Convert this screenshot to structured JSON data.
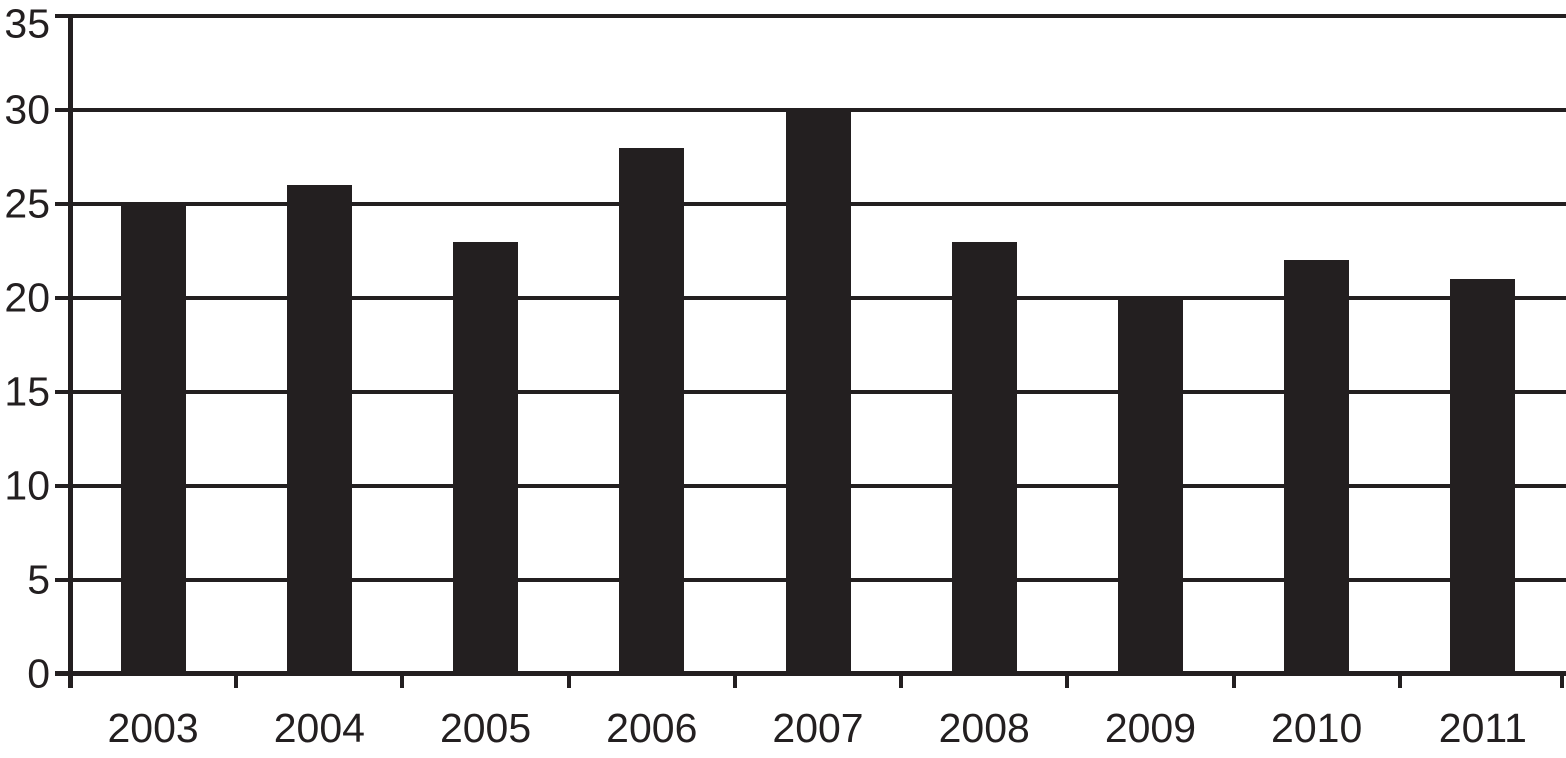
{
  "chart_data": {
    "type": "bar",
    "title": "",
    "xlabel": "",
    "ylabel": "",
    "categories": [
      "2003",
      "2004",
      "2005",
      "2006",
      "2007",
      "2008",
      "2009",
      "2010",
      "2011"
    ],
    "values": [
      25,
      26,
      23,
      28,
      30,
      23,
      20,
      22,
      21
    ],
    "ylim": [
      0,
      35
    ],
    "yticks": [
      0,
      5,
      10,
      15,
      20,
      25,
      30,
      35
    ],
    "grid": true,
    "legend": "none",
    "bar_color": "#231f20",
    "line_color": "#231f20",
    "text_color": "#231f20",
    "background_color": "#ffffff"
  }
}
